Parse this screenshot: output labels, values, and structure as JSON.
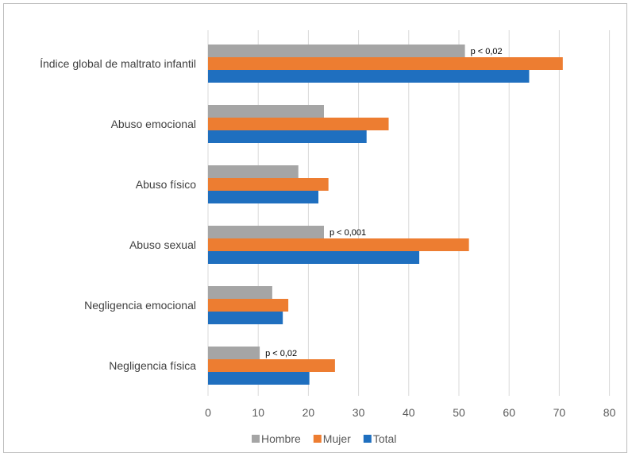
{
  "chart_data": {
    "type": "bar",
    "orientation": "horizontal",
    "categories": [
      "Índice global de maltrato infantil",
      "Abuso emocional",
      "Abuso físico",
      "Abuso sexual",
      "Negligencia emocional",
      "Negligencia física"
    ],
    "series": [
      {
        "name": "Hombre",
        "color": "#a5a5a5",
        "values": [
          51.2,
          23.1,
          18.0,
          23.1,
          12.8,
          10.3
        ]
      },
      {
        "name": "Mujer",
        "color": "#ed7d31",
        "values": [
          70.7,
          36.0,
          24.0,
          52.0,
          16.0,
          25.3
        ]
      },
      {
        "name": "Total",
        "color": "#1f6fbf",
        "values": [
          64.0,
          31.6,
          22.0,
          42.1,
          14.9,
          20.2
        ]
      }
    ],
    "annotations": [
      {
        "category_index": 0,
        "text": "p < 0,02"
      },
      {
        "category_index": 3,
        "text": "p < 0,001"
      },
      {
        "category_index": 5,
        "text": "p < 0,02"
      }
    ],
    "xlim": [
      0,
      80
    ],
    "xticks": [
      0,
      10,
      20,
      30,
      40,
      50,
      60,
      70,
      80
    ],
    "grid": true,
    "legend_position": "bottom",
    "title": "",
    "xlabel": "",
    "ylabel": ""
  }
}
